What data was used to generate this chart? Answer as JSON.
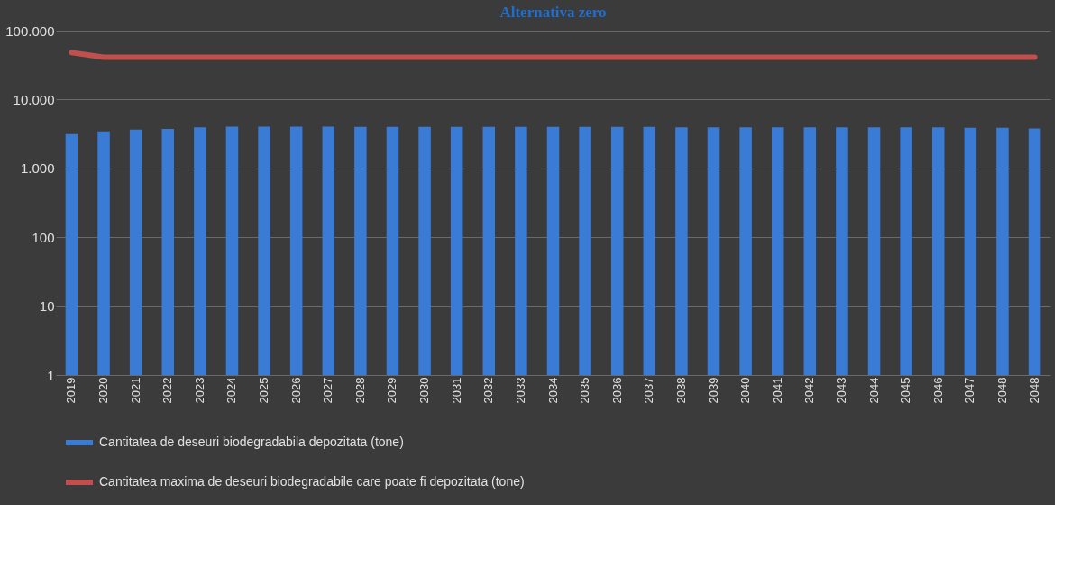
{
  "chart_data": {
    "type": "bar",
    "title": "Alternativa zero",
    "categories": [
      "2019",
      "2020",
      "2021",
      "2022",
      "2023",
      "2024",
      "2025",
      "2026",
      "2027",
      "2028",
      "2029",
      "2030",
      "2031",
      "2032",
      "2033",
      "2034",
      "2035",
      "2036",
      "2037",
      "2038",
      "2039",
      "2040",
      "2041",
      "2042",
      "2043",
      "2044",
      "2045",
      "2046",
      "2047",
      "2048",
      "2048"
    ],
    "series": [
      {
        "name": "Cantitatea de deseuri biodegradabila depozitata (tone)",
        "color": "#3a7bd5",
        "values": [
          3150,
          3450,
          3650,
          3750,
          3950,
          4050,
          4050,
          4050,
          4050,
          4000,
          4000,
          4000,
          4000,
          4000,
          4000,
          4000,
          4000,
          4000,
          4000,
          3950,
          3950,
          3950,
          3950,
          3950,
          3950,
          3950,
          3950,
          3950,
          3900,
          3900,
          3800
        ]
      },
      {
        "name": "Cantitatea maxima de deseuri biodegradabile care poate fi depozitata (tone)",
        "type": "line",
        "color": "#c0504d",
        "values": [
          48000,
          41000,
          41000,
          41000,
          41000,
          41000,
          41000,
          41000,
          41000,
          41000,
          41000,
          41000,
          41000,
          41000,
          41000,
          41000,
          41000,
          41000,
          41000,
          41000,
          41000,
          41000,
          41000,
          41000,
          41000,
          41000,
          41000,
          41000,
          41000,
          41000,
          41000
        ]
      }
    ],
    "log": true,
    "ylim": [
      1,
      100000
    ],
    "yticks": [
      1,
      10,
      100,
      {
        "value": 1000,
        "label": "1.000"
      },
      {
        "value": 10000,
        "label": "10.000"
      },
      {
        "value": 100000,
        "label": "100.000"
      }
    ],
    "grid": "y",
    "legend": "bottom"
  }
}
